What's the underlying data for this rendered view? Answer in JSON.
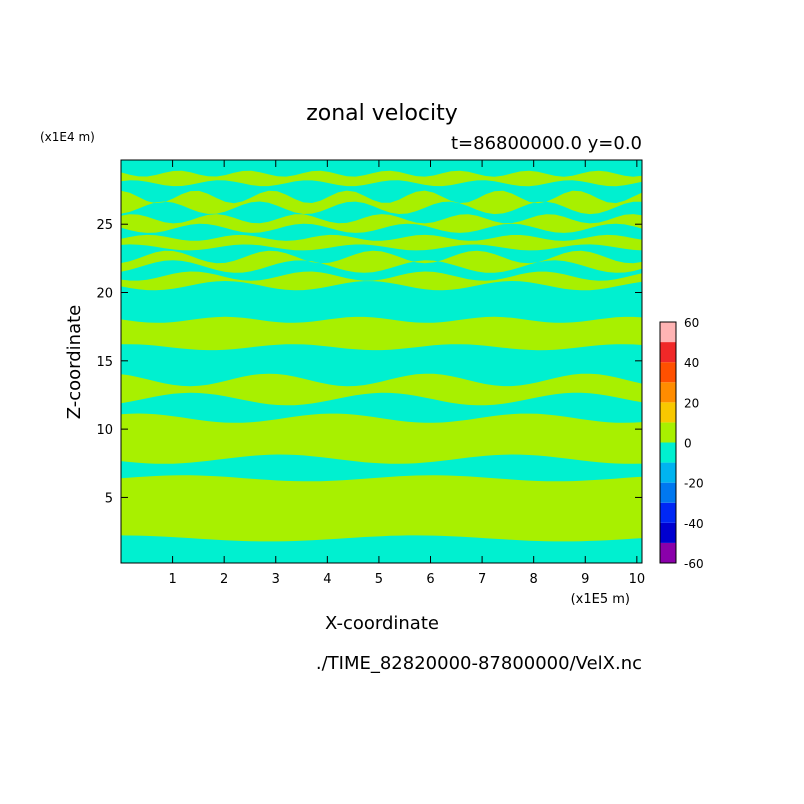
{
  "chart_data": {
    "type": "heatmap",
    "title": "zonal velocity",
    "subtitle": "t=86800000.0 y=0.0",
    "xlabel": "X-coordinate",
    "ylabel": "Z-coordinate",
    "x_unit": "(x1E5 m)",
    "y_unit": "(x1E4 m)",
    "source": "./TIME_82820000-87800000/VelX.nc",
    "xlim": [
      0,
      10.1
    ],
    "ylim": [
      0.2,
      29.7
    ],
    "x_ticks": [
      1,
      2,
      3,
      4,
      5,
      6,
      7,
      8,
      9,
      10
    ],
    "y_ticks": [
      5,
      10,
      15,
      20,
      25
    ],
    "colorbar": {
      "levels": [
        -60,
        -50,
        -40,
        -30,
        -20,
        -10,
        0,
        10,
        20,
        30,
        40,
        50,
        60
      ],
      "tick_labels": [
        "60",
        "40",
        "20",
        "0",
        "-20",
        "-40",
        "-60"
      ],
      "colors": [
        "#8a00aa",
        "#0000d0",
        "#0028f5",
        "#0078f0",
        "#00b4f0",
        "#00f0d0",
        "#a8f000",
        "#f8c800",
        "#ff8c00",
        "#ff5000",
        "#f02828",
        "#ffb4b4"
      ]
    },
    "fill_colors": {
      "negative_small": "#00f0d0",
      "positive_small": "#a8f000"
    },
    "bands_positive": [
      {
        "z": [
          2.0,
          6.4
        ],
        "label": "0 to 10"
      },
      {
        "z": [
          7.8,
          10.8
        ],
        "label": "0 to 10"
      },
      {
        "z": [
          12.2,
          13.6
        ],
        "label": "0 to 10"
      },
      {
        "z": [
          16.0,
          18.0
        ],
        "label": "0 to 10"
      },
      {
        "z": [
          20.5,
          21.2
        ],
        "label": "0 to 10"
      },
      {
        "z": [
          21.9,
          22.6
        ],
        "label": "0 to 10"
      },
      {
        "z": [
          23.3,
          24.0
        ],
        "label": "0 to 10"
      },
      {
        "z": [
          24.7,
          25.4
        ],
        "label": "0 to 10"
      },
      {
        "z": [
          26.2,
          27.0
        ],
        "label": "0 to 10"
      },
      {
        "z": [
          28.0,
          28.7
        ],
        "label": "0 to 10"
      }
    ]
  }
}
